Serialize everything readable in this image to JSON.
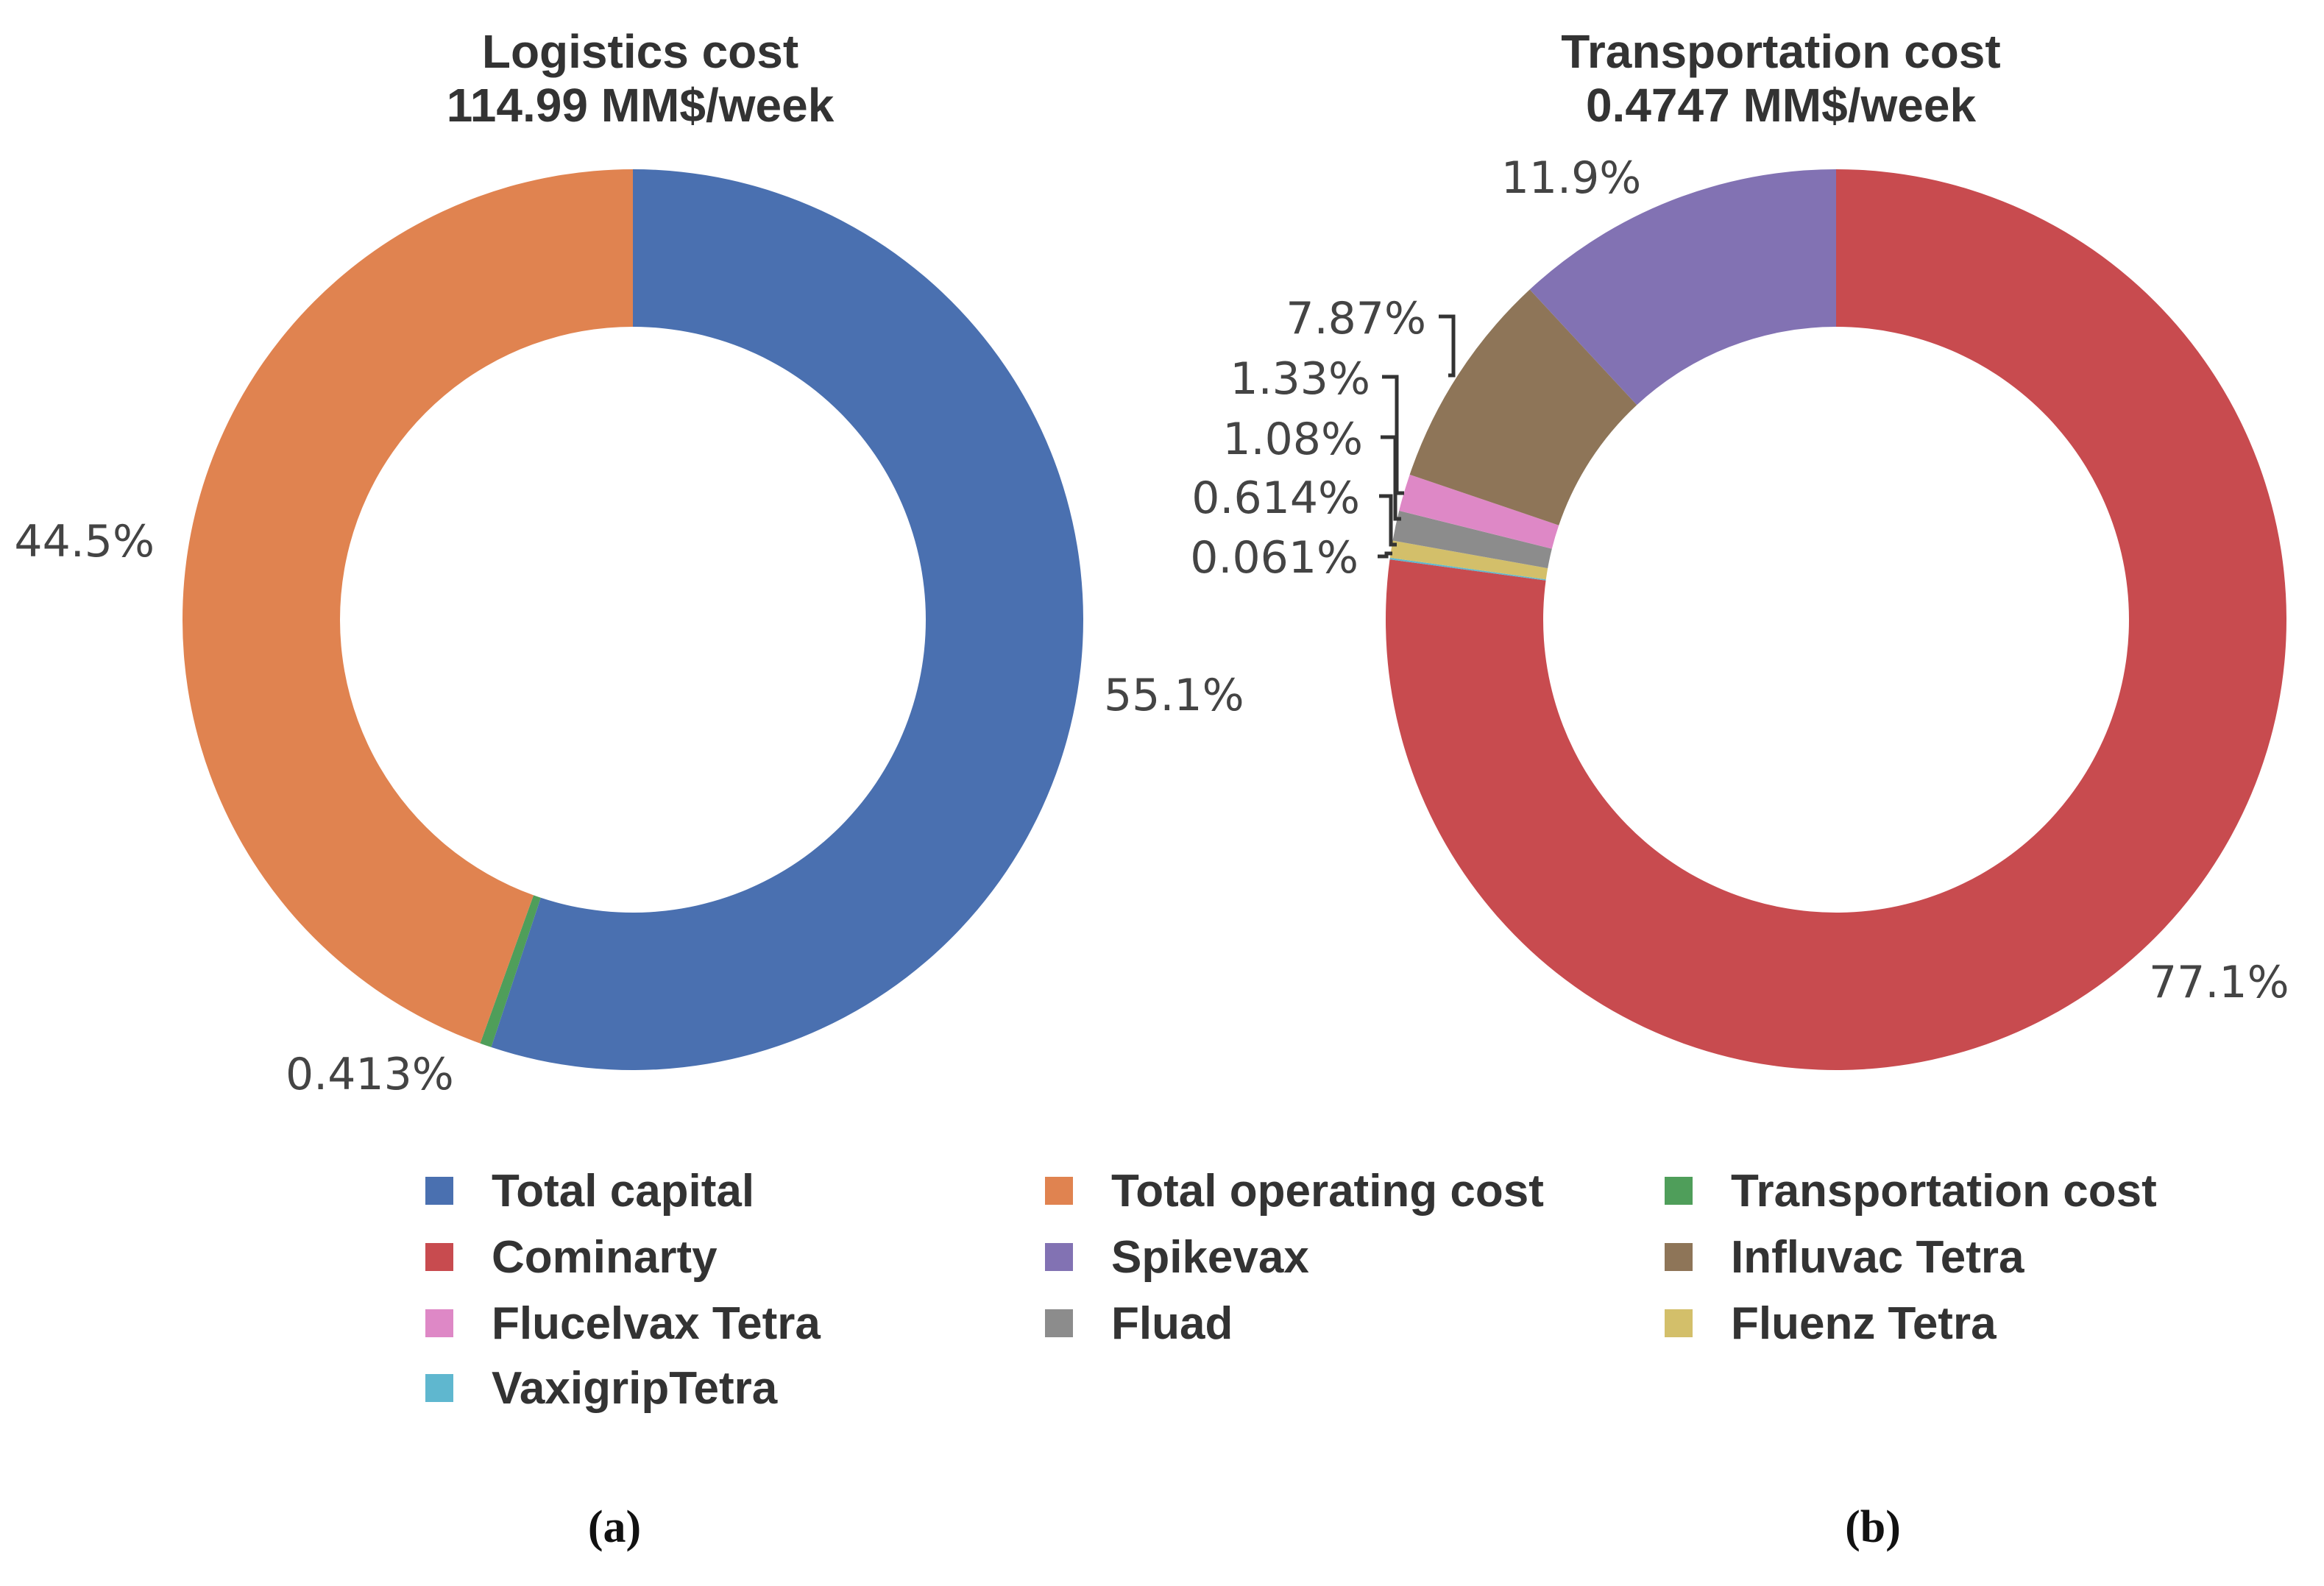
{
  "chart_data": [
    {
      "type": "pie",
      "subtype": "donut",
      "title": "Logistics cost",
      "subtitle": "114.99 MM$/week",
      "caption": "(a)",
      "slices": [
        {
          "name": "Total capital",
          "value": 55.1,
          "label": "55.1%",
          "color": "#4a70b0"
        },
        {
          "name": "Transportation cost",
          "value": 0.413,
          "label": "0.413%",
          "color": "#4f9e5a"
        },
        {
          "name": "Total operating cost",
          "value": 44.5,
          "label": "44.5%",
          "color": "#e08350"
        }
      ]
    },
    {
      "type": "pie",
      "subtype": "donut",
      "title": "Transportation cost",
      "subtitle": "0.4747 MM$/week",
      "caption": "(b)",
      "slices": [
        {
          "name": "Cominarty",
          "value": 77.1,
          "label": "77.1%",
          "color": "#c84b4f"
        },
        {
          "name": "VaxigripTetra",
          "value": 0.061,
          "label": "0.061%",
          "color": "#5fb7cf"
        },
        {
          "name": "Fluenz Tetra",
          "value": 0.614,
          "label": "0.614%",
          "color": "#d3bf6a"
        },
        {
          "name": "Fluad",
          "value": 1.08,
          "label": "1.08%",
          "color": "#8c8c8c"
        },
        {
          "name": "Flucelvax Tetra",
          "value": 1.33,
          "label": "1.33%",
          "color": "#de88c6"
        },
        {
          "name": "Influvac Tetra",
          "value": 7.87,
          "label": "7.87%",
          "color": "#8e7558"
        },
        {
          "name": "Spikevax",
          "value": 11.9,
          "label": "11.9%",
          "color": "#8272b3"
        }
      ]
    }
  ],
  "legend": [
    {
      "name": "Total capital",
      "color": "#4a70b0"
    },
    {
      "name": "Total operating cost",
      "color": "#e08350"
    },
    {
      "name": "Transportation cost",
      "color": "#4f9e5a"
    },
    {
      "name": "Cominarty",
      "color": "#c84b4f"
    },
    {
      "name": "Spikevax",
      "color": "#8272b3"
    },
    {
      "name": "Influvac Tetra",
      "color": "#8e7558"
    },
    {
      "name": "Flucelvax Tetra",
      "color": "#de88c6"
    },
    {
      "name": "Fluad",
      "color": "#8c8c8c"
    },
    {
      "name": "Fluenz Tetra",
      "color": "#d3bf6a"
    },
    {
      "name": "VaxigripTetra",
      "color": "#5fb7cf"
    }
  ]
}
